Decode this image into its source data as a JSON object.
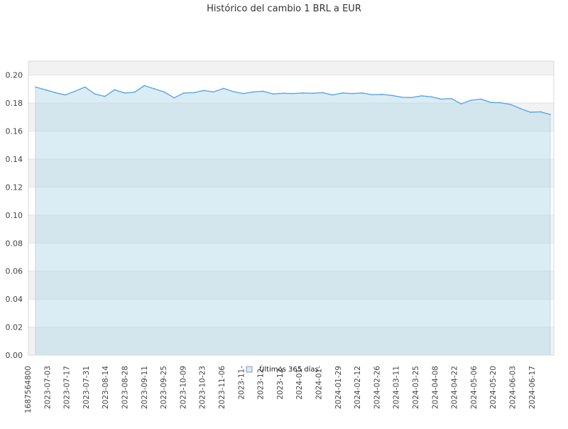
{
  "chart_data": {
    "type": "area",
    "title": "Histórico del cambio 1 BRL a EUR",
    "xlabel": "",
    "ylabel": "",
    "ylim": [
      0,
      0.21
    ],
    "y_ticks": [
      0.0,
      0.02,
      0.04,
      0.06,
      0.08,
      0.1,
      0.12,
      0.14,
      0.16,
      0.18,
      0.2
    ],
    "y_tick_labels": [
      "0.00",
      "0.02",
      "0.04",
      "0.06",
      "0.08",
      "0.10",
      "0.12",
      "0.14",
      "0.16",
      "0.18",
      "0.20"
    ],
    "x_tick_labels": [
      "1687564800",
      "2023-07-03",
      "2023-07-17",
      "2023-07-31",
      "2023-08-14",
      "2023-08-28",
      "2023-09-11",
      "2023-09-25",
      "2023-10-09",
      "2023-10-23",
      "2023-11-06",
      "2023-11-",
      "2023-12-",
      "2023-12-",
      "2024-01-",
      "2024-01-",
      "2024-01-29",
      "2024-02-12",
      "2024-02-26",
      "2024-03-11",
      "2024-03-25",
      "2024-04-08",
      "2024-04-22",
      "2024-05-06",
      "2024-05-20",
      "2024-06-03",
      "2024-06-17"
    ],
    "legend_position": "bottom-center",
    "grid": true,
    "series": [
      {
        "name": "Últimos 365 días",
        "color": "#5aa6e6",
        "fill": "#add8e6",
        "x": [
          "2023-06-24",
          "2023-07-01",
          "2023-07-08",
          "2023-07-15",
          "2023-07-22",
          "2023-07-29",
          "2023-08-05",
          "2023-08-12",
          "2023-08-19",
          "2023-08-26",
          "2023-09-02",
          "2023-09-09",
          "2023-09-16",
          "2023-09-23",
          "2023-09-30",
          "2023-10-07",
          "2023-10-14",
          "2023-10-21",
          "2023-10-28",
          "2023-11-04",
          "2023-11-11",
          "2023-11-18",
          "2023-11-25",
          "2023-12-02",
          "2023-12-09",
          "2023-12-16",
          "2023-12-23",
          "2023-12-30",
          "2024-01-06",
          "2024-01-13",
          "2024-01-20",
          "2024-01-27",
          "2024-02-03",
          "2024-02-10",
          "2024-02-17",
          "2024-02-24",
          "2024-03-02",
          "2024-03-09",
          "2024-03-16",
          "2024-03-23",
          "2024-03-30",
          "2024-04-06",
          "2024-04-13",
          "2024-04-20",
          "2024-04-27",
          "2024-05-04",
          "2024-05-11",
          "2024-05-18",
          "2024-05-25",
          "2024-06-01",
          "2024-06-08",
          "2024-06-15",
          "2024-06-22"
        ],
        "values": [
          0.1915,
          0.1895,
          0.1875,
          0.1858,
          0.1885,
          0.1915,
          0.1865,
          0.1848,
          0.1895,
          0.1872,
          0.1878,
          0.1925,
          0.1902,
          0.188,
          0.1838,
          0.1872,
          0.1875,
          0.189,
          0.188,
          0.1905,
          0.1882,
          0.1868,
          0.188,
          0.1885,
          0.1865,
          0.187,
          0.1868,
          0.1872,
          0.187,
          0.1875,
          0.1858,
          0.1872,
          0.1868,
          0.1872,
          0.186,
          0.1862,
          0.1855,
          0.1842,
          0.184,
          0.1852,
          0.1845,
          0.1828,
          0.1832,
          0.1795,
          0.182,
          0.1828,
          0.1805,
          0.1802,
          0.179,
          0.176,
          0.1735,
          0.1738,
          0.1718
        ]
      }
    ]
  }
}
